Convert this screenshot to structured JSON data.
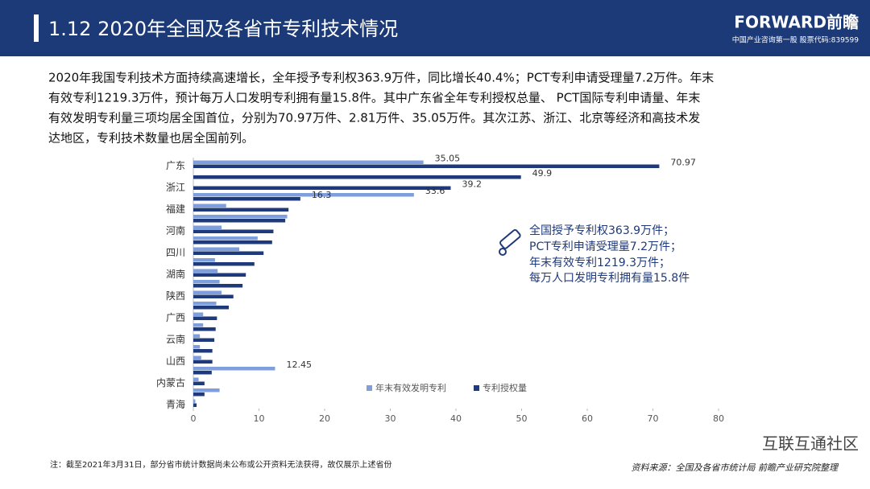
{
  "header": {
    "title": "1.12 2020年全国及各省市专利技术情况",
    "logo": "FORWARD前瞻",
    "logo_sub": "中国产业咨询第一股 股票代码:839599"
  },
  "paragraph": [
    "2020年我国专利技术方面持续高速增长，全年授予专利权363.9万件，同比增长40.4%；PCT专利申请受理量7.2万件。年末",
    "有效专利1219.3万件，预计每万人口发明专利拥有量15.8件。其中广东省全年专利授权总量、 PCT国际专利申请量、年末",
    "有效发明专利量三项均居全国首位，分别为70.97万件、2.81万件、35.05万件。其次江苏、浙江、北京等经济和高技术发",
    "达地区，专利技术数量也居全国前列。"
  ],
  "callout": [
    "全国授予专利权363.9万件；",
    "PCT专利申请受理量7.2万件；",
    "年末有效专利1219.3万件；",
    "每万人口发明专利拥有量15.8件"
  ],
  "footnote": "注：截至2021年3月31日，部分省市统计数据尚未公布或公开资料无法获得，故仅展示上述省份",
  "source": "资料来源：全国及各省市统计局 前瞻产业研究院整理",
  "watermark": "互联互通社区",
  "chart_data": {
    "type": "hbar",
    "categories": [
      "广东",
      null,
      "浙江",
      null,
      "福建",
      null,
      "河南",
      null,
      "四川",
      null,
      "湖南",
      null,
      "陕西",
      null,
      "广西",
      null,
      "云南",
      null,
      "山西",
      null,
      "内蒙古",
      null,
      "青海"
    ],
    "series": [
      {
        "name": "年末有效发明专利",
        "color": "#7f9fdc",
        "values": [
          35.05,
          null,
          null,
          33.6,
          5.0,
          14.3,
          4.3,
          9.8,
          7.0,
          3.3,
          3.7,
          4.0,
          4.3,
          3.5,
          1.5,
          1.5,
          1.0,
          1.0,
          1.2,
          12.45,
          0.8,
          4.0,
          0.3
        ],
        "value_labels": [
          "35.05",
          null,
          null,
          "33.6",
          null,
          null,
          null,
          null,
          null,
          null,
          null,
          null,
          null,
          null,
          null,
          null,
          null,
          null,
          null,
          "12.45",
          null,
          null,
          null
        ]
      },
      {
        "name": "专利授权量",
        "color": "#1f3a7a",
        "values": [
          70.97,
          49.9,
          39.2,
          16.3,
          14.5,
          14.0,
          12.2,
          12.0,
          10.7,
          9.3,
          8.0,
          7.5,
          6.1,
          5.4,
          3.6,
          3.4,
          3.2,
          2.9,
          2.9,
          2.8,
          1.7,
          1.7,
          0.5
        ],
        "value_labels": [
          "70.97",
          "49.9",
          "39.2",
          "16.3",
          null,
          null,
          null,
          null,
          null,
          null,
          null,
          null,
          null,
          null,
          null,
          null,
          null,
          null,
          null,
          null,
          null,
          null,
          null
        ]
      }
    ],
    "xlim": [
      0,
      80
    ],
    "xticks": [
      0,
      10,
      20,
      30,
      40,
      50,
      60,
      70,
      80
    ]
  }
}
